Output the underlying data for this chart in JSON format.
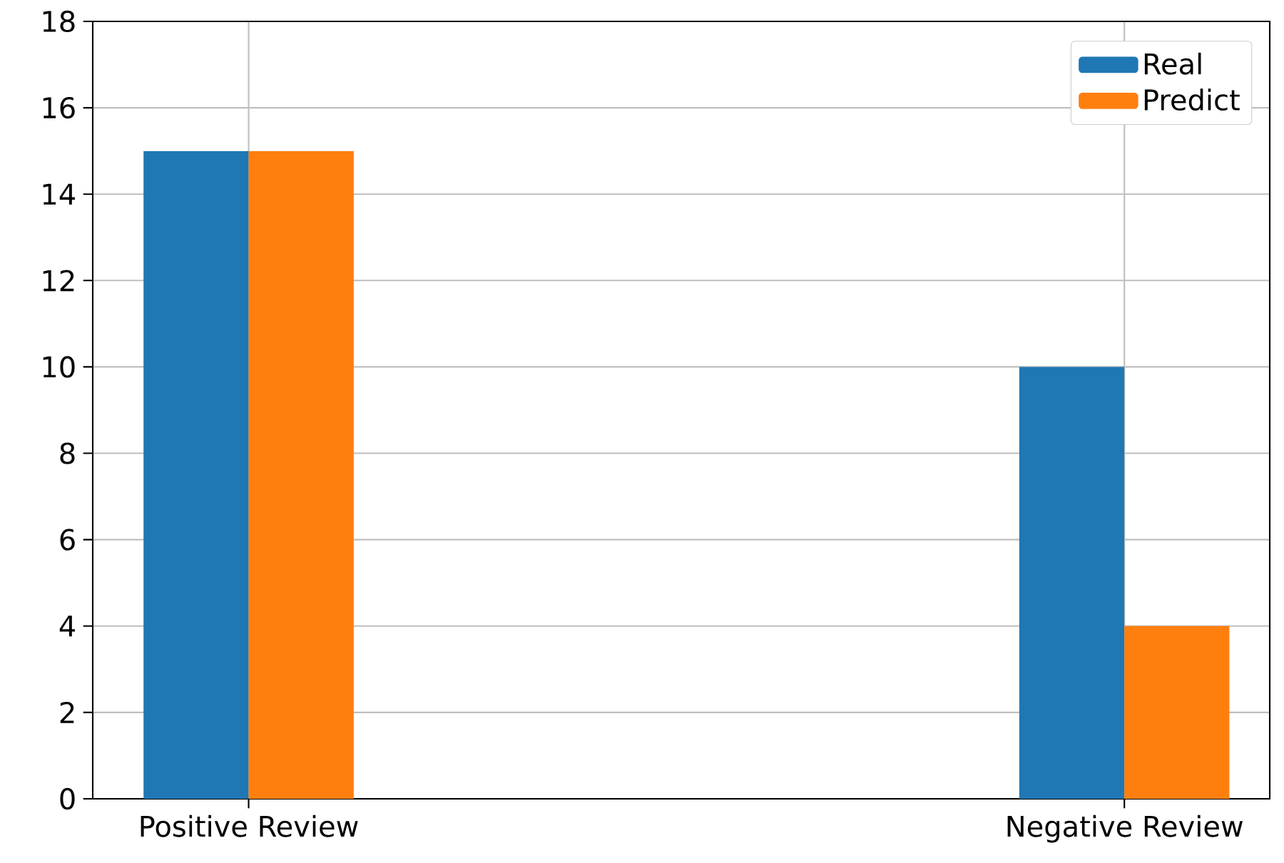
{
  "chart_data": {
    "type": "bar",
    "categories": [
      "Positive Review",
      "Negative Review"
    ],
    "series": [
      {
        "name": "Real",
        "color": "#1f77b4",
        "values": [
          15,
          10
        ]
      },
      {
        "name": "Predict",
        "color": "#ff7f0e",
        "values": [
          15,
          4
        ]
      }
    ],
    "ylim": [
      0,
      18
    ],
    "yticks": [
      0,
      2,
      4,
      6,
      8,
      10,
      12,
      14,
      16,
      18
    ],
    "grid": true,
    "legend": "top right"
  }
}
